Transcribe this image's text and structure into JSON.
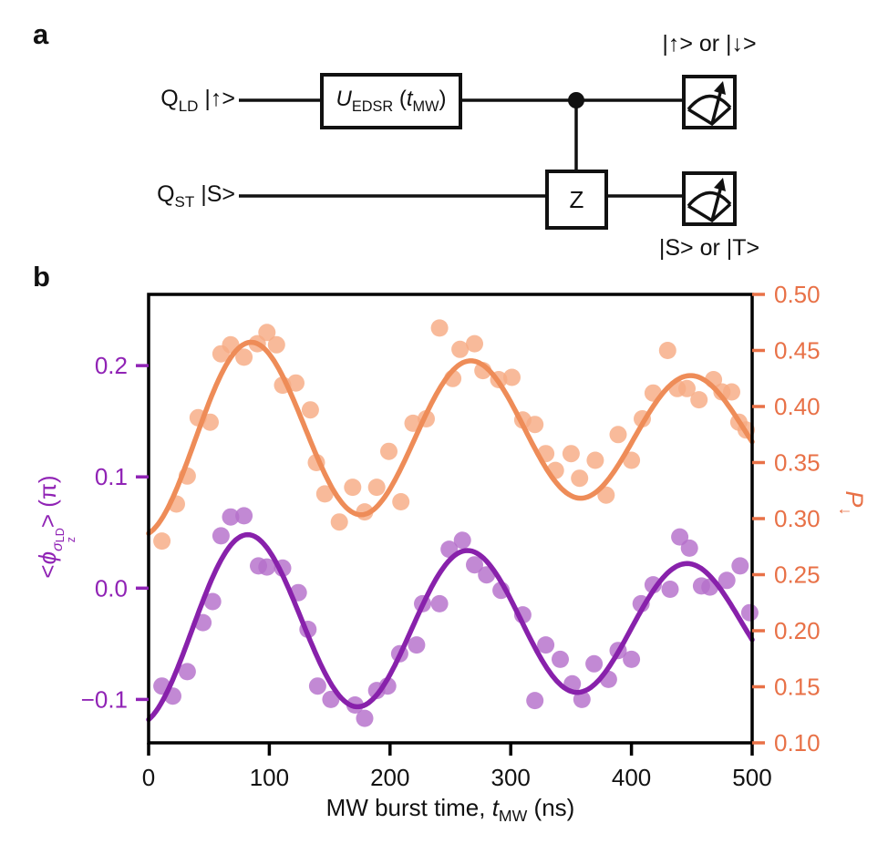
{
  "panel_a": {
    "label": "a",
    "qubit1": {
      "base": "Q",
      "sub": "LD",
      "state": " |↑>"
    },
    "qubit2": {
      "base": "Q",
      "sub": "ST",
      "state": " |S>"
    },
    "gate_u": {
      "name": "U",
      "sub": "EDSR",
      "open": " (",
      "t": "t",
      "tsub": "MW",
      "close": ")"
    },
    "gate_z": {
      "label": "Z"
    },
    "outcome_top": "|↑> or |↓>",
    "outcome_bottom": "|S> or |T>"
  },
  "panel_b": {
    "label": "b",
    "xlabel": {
      "pre": "MW burst time, ",
      "t": "t",
      "sub": "MW",
      "post": " (ns)"
    },
    "ylabel_left": {
      "lt": "<",
      "phi": "ϕ",
      "sigma": "σ",
      "sigma_sup": "LD",
      "sigma_sub": "z",
      "gt": ">",
      "unit": " (π)"
    },
    "ylabel_right": {
      "p": "P",
      "sub": "↓"
    }
  },
  "chart_data": {
    "type": "scatter",
    "title": "",
    "xlabel": "MW burst time, t_MW (ns)",
    "ylabel_left": "<phi_sigma_z_LD> (pi)",
    "ylabel_right": "P_down",
    "grid": false,
    "legend": "none",
    "xlim": [
      0,
      500
    ],
    "ylim_left": [
      -0.139,
      0.264
    ],
    "ylim_right": [
      0.1,
      0.5
    ],
    "x_ticks": {
      "values": [
        0,
        100,
        200,
        300,
        400,
        500
      ],
      "labels": [
        "0",
        "100",
        "200",
        "300",
        "400",
        "500"
      ]
    },
    "left_ticks": {
      "values": [
        0.2,
        0.1,
        0.0,
        -0.1
      ],
      "labels": [
        "0.2",
        "0.1",
        "0.0",
        "−0.1"
      ]
    },
    "right_ticks": {
      "values": [
        0.5,
        0.45,
        0.4,
        0.35,
        0.3,
        0.25,
        0.2,
        0.15,
        0.1
      ],
      "labels": [
        "0.50",
        "0.45",
        "0.40",
        "0.35",
        "0.30",
        "0.25",
        "0.20",
        "0.15",
        "0.10"
      ]
    },
    "colors": {
      "left_axis_text": "#9023B5",
      "right_axis_text": "#E87147",
      "frame": "#000000",
      "purple_line": "#8821AB",
      "purple_dot": "#B56FCA",
      "orange_line": "#EE8C58",
      "orange_dot": "#F6AB84"
    },
    "series": [
      {
        "name": "spin-down probability P_down (orange, right axis)",
        "axis": "right",
        "dot_color": "#F6AB84",
        "line_color": "#EE8C58",
        "fit": {
          "model": "baseline + amplitude*exp(-t/tau)*cos(2*pi*(t-peak)/period)",
          "baseline": 0.376,
          "amplitude": 0.0905,
          "decay_tau_ns": 800,
          "period_ns": 182,
          "peak_ns": 86
        },
        "points": [
          [
            11,
            0.28
          ],
          [
            23,
            0.313
          ],
          [
            32,
            0.338
          ],
          [
            41,
            0.39
          ],
          [
            51,
            0.386
          ],
          [
            60,
            0.447
          ],
          [
            68,
            0.455
          ],
          [
            79,
            0.444
          ],
          [
            90,
            0.456
          ],
          [
            98,
            0.466
          ],
          [
            106,
            0.455
          ],
          [
            111,
            0.419
          ],
          [
            122,
            0.421
          ],
          [
            134,
            0.397
          ],
          [
            139,
            0.35
          ],
          [
            146,
            0.322
          ],
          [
            158,
            0.297
          ],
          [
            169,
            0.328
          ],
          [
            179,
            0.306
          ],
          [
            189,
            0.328
          ],
          [
            199,
            0.36
          ],
          [
            209,
            0.315
          ],
          [
            219,
            0.385
          ],
          [
            230,
            0.389
          ],
          [
            241,
            0.47
          ],
          [
            252,
            0.425
          ],
          [
            258,
            0.451
          ],
          [
            270,
            0.456
          ],
          [
            277,
            0.432
          ],
          [
            290,
            0.424
          ],
          [
            301,
            0.426
          ],
          [
            310,
            0.388
          ],
          [
            320,
            0.384
          ],
          [
            329,
            0.358
          ],
          [
            337,
            0.343
          ],
          [
            350,
            0.358
          ],
          [
            357,
            0.336
          ],
          [
            370,
            0.352
          ],
          [
            379,
            0.321
          ],
          [
            389,
            0.375
          ],
          [
            400,
            0.352
          ],
          [
            409,
            0.389
          ],
          [
            418,
            0.412
          ],
          [
            430,
            0.45
          ],
          [
            438,
            0.416
          ],
          [
            446,
            0.416
          ],
          [
            456,
            0.406
          ],
          [
            468,
            0.424
          ],
          [
            475,
            0.413
          ],
          [
            483,
            0.413
          ],
          [
            489,
            0.386
          ],
          [
            495,
            0.379
          ]
        ]
      },
      {
        "name": "measured phase <phi_sigma_z_LD> in pi units (purple, left axis)",
        "axis": "left",
        "dot_color": "#B56FCA",
        "line_color": "#8821AB",
        "fit": {
          "model": "baseline + amplitude*exp(-t/tau)*cos(2*pi*(t-peak)/period)",
          "baseline": -0.033,
          "amplitude": 0.0885,
          "decay_tau_ns": 943,
          "period_ns": 182,
          "peak_ns": 83
        },
        "points": [
          [
            11,
            -0.088
          ],
          [
            20,
            -0.097
          ],
          [
            32,
            -0.075
          ],
          [
            45,
            -0.031
          ],
          [
            53,
            -0.012
          ],
          [
            60,
            0.047
          ],
          [
            68,
            0.064
          ],
          [
            79,
            0.065
          ],
          [
            91,
            0.02
          ],
          [
            98,
            0.019
          ],
          [
            111,
            0.018
          ],
          [
            124,
            -0.004
          ],
          [
            132,
            -0.037
          ],
          [
            140,
            -0.088
          ],
          [
            151,
            -0.1
          ],
          [
            171,
            -0.105
          ],
          [
            179,
            -0.117
          ],
          [
            189,
            -0.092
          ],
          [
            198,
            -0.088
          ],
          [
            208,
            -0.059
          ],
          [
            222,
            -0.051
          ],
          [
            227,
            -0.014
          ],
          [
            241,
            -0.014
          ],
          [
            249,
            0.035
          ],
          [
            260,
            0.043
          ],
          [
            270,
            0.021
          ],
          [
            280,
            0.012
          ],
          [
            292,
            -0.002
          ],
          [
            310,
            -0.024
          ],
          [
            320,
            -0.101
          ],
          [
            329,
            -0.051
          ],
          [
            341,
            -0.064
          ],
          [
            351,
            -0.086
          ],
          [
            359,
            -0.1
          ],
          [
            369,
            -0.068
          ],
          [
            381,
            -0.082
          ],
          [
            389,
            -0.056
          ],
          [
            400,
            -0.064
          ],
          [
            408,
            -0.014
          ],
          [
            418,
            0.003
          ],
          [
            432,
            -0.001
          ],
          [
            440,
            0.046
          ],
          [
            448,
            0.036
          ],
          [
            458,
            0.002
          ],
          [
            465,
            0.001
          ],
          [
            479,
            0.007
          ],
          [
            490,
            0.02
          ],
          [
            498,
            -0.022
          ]
        ]
      }
    ]
  }
}
